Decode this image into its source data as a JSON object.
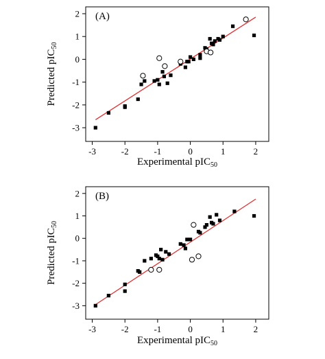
{
  "chart_data": [
    {
      "type": "scatter",
      "panel_label": "(A)",
      "xlabel": "Experimental pIC",
      "ylabel": "Predicted pIC",
      "label_subscript": "50",
      "xlim": [
        -3.2,
        2.4
      ],
      "ylim": [
        -3.6,
        2.3
      ],
      "xticks": [
        -3,
        -2,
        -1,
        0,
        1,
        2
      ],
      "yticks": [
        -3,
        -2,
        -1,
        0,
        1,
        2
      ],
      "grid": false,
      "fit_line": {
        "x": [
          -2.9,
          2.0
        ],
        "y": [
          -2.65,
          1.85
        ],
        "color": "#e03030"
      },
      "series": [
        {
          "marker": "filled-square",
          "points": [
            [
              -2.9,
              -3.0
            ],
            [
              -2.5,
              -2.35
            ],
            [
              -2.0,
              -2.05
            ],
            [
              -2.0,
              -2.1
            ],
            [
              -1.6,
              -1.75
            ],
            [
              -1.5,
              -1.1
            ],
            [
              -1.4,
              -0.95
            ],
            [
              -1.1,
              -0.95
            ],
            [
              -1.0,
              -0.9
            ],
            [
              -0.95,
              -1.1
            ],
            [
              -0.85,
              -0.55
            ],
            [
              -0.8,
              -0.75
            ],
            [
              -0.7,
              -1.05
            ],
            [
              -0.6,
              -0.7
            ],
            [
              -0.3,
              -0.2
            ],
            [
              -0.15,
              -0.35
            ],
            [
              -0.1,
              -0.1
            ],
            [
              -0.05,
              -0.1
            ],
            [
              0.0,
              0.1
            ],
            [
              0.1,
              0.0
            ],
            [
              0.3,
              0.2
            ],
            [
              0.3,
              0.05
            ],
            [
              0.45,
              0.5
            ],
            [
              0.5,
              0.45
            ],
            [
              0.6,
              0.9
            ],
            [
              0.65,
              0.7
            ],
            [
              0.7,
              0.65
            ],
            [
              0.75,
              0.8
            ],
            [
              0.85,
              0.9
            ],
            [
              0.9,
              0.85
            ],
            [
              1.0,
              1.0
            ],
            [
              1.3,
              1.45
            ],
            [
              1.95,
              1.05
            ]
          ]
        },
        {
          "marker": "open-circle",
          "points": [
            [
              -1.45,
              -0.72
            ],
            [
              -0.95,
              0.05
            ],
            [
              -0.78,
              -0.3
            ],
            [
              -0.3,
              -0.1
            ],
            [
              0.5,
              0.35
            ],
            [
              0.62,
              0.3
            ],
            [
              1.7,
              1.75
            ]
          ]
        }
      ]
    },
    {
      "type": "scatter",
      "panel_label": "(B)",
      "xlabel": "Experimental pIC",
      "ylabel": "Predicted pIC",
      "label_subscript": "50",
      "xlim": [
        -3.2,
        2.4
      ],
      "ylim": [
        -3.6,
        2.3
      ],
      "xticks": [
        -3,
        -2,
        -1,
        0,
        1,
        2
      ],
      "yticks": [
        -3,
        -2,
        -1,
        0,
        1,
        2
      ],
      "grid": false,
      "fit_line": {
        "x": [
          -2.9,
          2.0
        ],
        "y": [
          -2.95,
          1.75
        ],
        "color": "#e03030"
      },
      "series": [
        {
          "marker": "filled-square",
          "points": [
            [
              -2.9,
              -3.0
            ],
            [
              -2.5,
              -2.55
            ],
            [
              -2.0,
              -2.05
            ],
            [
              -2.0,
              -2.35
            ],
            [
              -1.6,
              -1.45
            ],
            [
              -1.55,
              -1.5
            ],
            [
              -1.4,
              -1.0
            ],
            [
              -1.2,
              -0.9
            ],
            [
              -1.05,
              -0.75
            ],
            [
              -1.0,
              -0.8
            ],
            [
              -0.95,
              -0.9
            ],
            [
              -0.9,
              -0.5
            ],
            [
              -0.85,
              -0.95
            ],
            [
              -0.75,
              -0.6
            ],
            [
              -0.65,
              -0.7
            ],
            [
              -0.3,
              -0.25
            ],
            [
              -0.2,
              -0.3
            ],
            [
              -0.15,
              -0.45
            ],
            [
              -0.1,
              -0.05
            ],
            [
              0.0,
              -0.05
            ],
            [
              0.25,
              0.3
            ],
            [
              0.3,
              0.25
            ],
            [
              0.45,
              0.5
            ],
            [
              0.5,
              0.6
            ],
            [
              0.6,
              0.95
            ],
            [
              0.65,
              0.7
            ],
            [
              0.7,
              0.65
            ],
            [
              0.8,
              1.05
            ],
            [
              0.9,
              0.8
            ],
            [
              1.35,
              1.2
            ],
            [
              1.95,
              1.0
            ]
          ]
        },
        {
          "marker": "open-circle",
          "points": [
            [
              -1.2,
              -1.4
            ],
            [
              -0.95,
              -1.4
            ],
            [
              0.1,
              0.6
            ],
            [
              0.05,
              -0.95
            ],
            [
              0.25,
              -0.8
            ]
          ]
        }
      ]
    }
  ]
}
